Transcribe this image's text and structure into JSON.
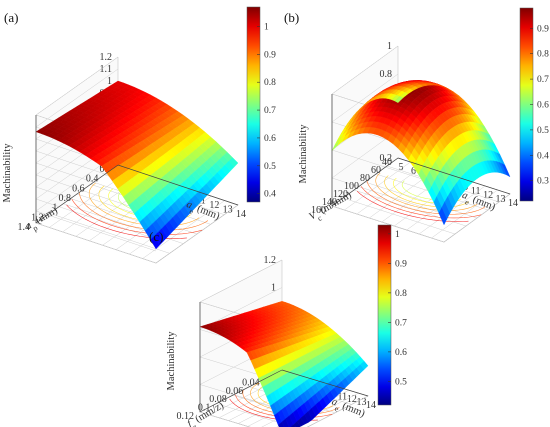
{
  "chart_data": [
    {
      "type": "surface",
      "panel_label": "(a)",
      "zlabel": "Machinability",
      "x_label_sym": "a",
      "x_label_sub": "e",
      "x_label_unit": "(mm)",
      "y_label_sym": "a",
      "y_label_sub": "p",
      "y_label_unit": "(mm)",
      "x_ticks": [
        "5",
        "6",
        "7",
        "8",
        "9",
        "10",
        "11",
        "12",
        "13",
        "14"
      ],
      "y_ticks": [
        "0.2",
        "0.4",
        "0.6",
        "0.8",
        "1",
        "1.2",
        "1.4"
      ],
      "z_ticks": [
        "0.3",
        "0.4",
        "0.5",
        "0.6",
        "0.7",
        "0.8",
        "0.9",
        "1",
        "1.1",
        "1.2"
      ],
      "zlim": [
        0.3,
        1.2
      ],
      "colorbar_ticks": [
        "0.4",
        "0.5",
        "0.6",
        "0.7",
        "0.8",
        "0.9",
        "1"
      ],
      "colorbar_range": [
        0.37,
        1.07
      ],
      "surface_summary": {
        "max": 1.07,
        "min": 0.37,
        "peak_at_ae_mm": 8
      }
    },
    {
      "type": "surface",
      "panel_label": "(b)",
      "zlabel": "Machinability",
      "x_label_sym": "a",
      "x_label_sub": "e",
      "x_label_unit": "(mm)",
      "y_label_sym": "V",
      "y_label_sub": "c",
      "y_label_unit": "(m/min)",
      "x_ticks": [
        "5",
        "6",
        "7",
        "8",
        "9",
        "10",
        "11",
        "12",
        "13",
        "14"
      ],
      "y_ticks": [
        "40",
        "60",
        "80",
        "100",
        "120",
        "140",
        "160"
      ],
      "z_ticks": [
        "0.2",
        "0.4",
        "0.6",
        "0.8",
        "1"
      ],
      "zlim": [
        0.2,
        1.0
      ],
      "colorbar_ticks": [
        "0.3",
        "0.4",
        "0.5",
        "0.6",
        "0.7",
        "0.8",
        "0.9"
      ],
      "colorbar_range": [
        0.22,
        0.98
      ],
      "surface_summary": {
        "max": 0.97,
        "min": 0.25,
        "peak_at_ae_mm": 9,
        "peak_at_vc": 100
      }
    },
    {
      "type": "surface",
      "panel_label": "(c)",
      "zlabel": "Machinability",
      "x_label_sym": "a",
      "x_label_sub": "e",
      "x_label_unit": "(mm)",
      "y_label_sym": "f",
      "y_label_sub": "z",
      "y_label_unit": "(mm/z)",
      "x_ticks": [
        "5",
        "6",
        "7",
        "8",
        "9",
        "10",
        "11",
        "12",
        "13",
        "14"
      ],
      "y_ticks": [
        "0.02",
        "0.04",
        "0.06",
        "0.08",
        "0.1",
        "0.12"
      ],
      "z_ticks": [
        "0.4",
        "0.6",
        "0.8",
        "1",
        "1.2"
      ],
      "zlim": [
        0.4,
        1.2
      ],
      "colorbar_ticks": [
        "0.5",
        "0.6",
        "0.7",
        "0.8",
        "0.9",
        "1"
      ],
      "colorbar_range": [
        0.42,
        1.03
      ],
      "surface_summary": {
        "max": 1.02,
        "min": 0.43,
        "peak_at_ae_mm": 8
      }
    }
  ]
}
